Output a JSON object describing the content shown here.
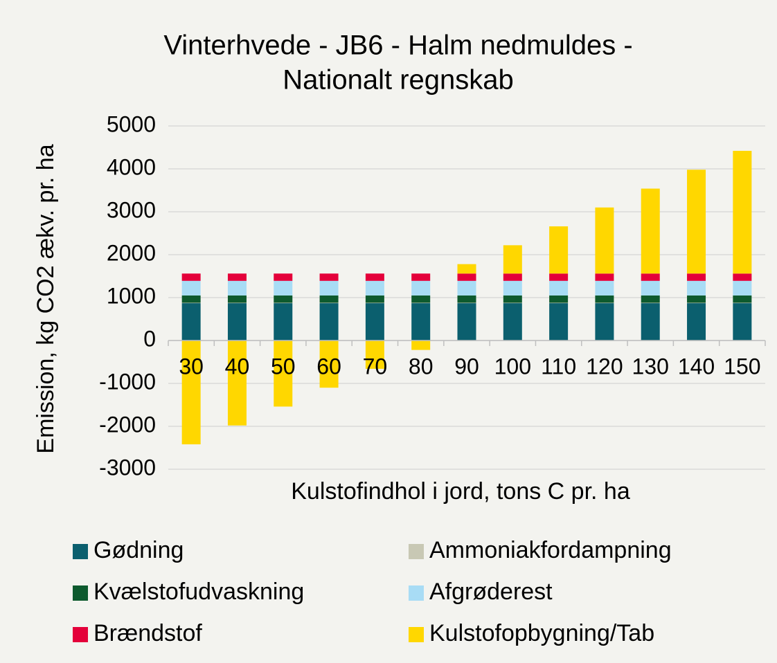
{
  "chart_data": {
    "type": "stacked_bar",
    "title": "Vinterhvede - JB6 - Halm nedmuldes -",
    "subtitle": "Nationalt regnskab",
    "x_label": "Kulstofindhol i jord, tons C pr. ha",
    "y_label": "Emission, kg CO2 ækv. pr. ha",
    "categories": [
      "30",
      "40",
      "50",
      "60",
      "70",
      "80",
      "90",
      "100",
      "110",
      "120",
      "130",
      "140",
      "150"
    ],
    "series": [
      {
        "name": "Gødning",
        "color": "#0b5f6e",
        "values": [
          870,
          870,
          870,
          870,
          870,
          870,
          870,
          870,
          870,
          870,
          870,
          870,
          870
        ]
      },
      {
        "name": "Ammoniakfordampning",
        "color": "#c8c8b4",
        "values": [
          10,
          10,
          10,
          10,
          10,
          10,
          10,
          10,
          10,
          10,
          10,
          10,
          10
        ]
      },
      {
        "name": "Kvælstofudvaskning",
        "color": "#0d5a2e",
        "values": [
          170,
          170,
          170,
          170,
          170,
          170,
          170,
          170,
          170,
          170,
          170,
          170,
          170
        ]
      },
      {
        "name": "Afgrøderest",
        "color": "#a8dcf5",
        "values": [
          340,
          340,
          340,
          340,
          340,
          340,
          340,
          340,
          340,
          340,
          340,
          340,
          340
        ]
      },
      {
        "name": "Brændstof",
        "color": "#e4003a",
        "values": [
          170,
          170,
          170,
          170,
          170,
          170,
          170,
          170,
          170,
          170,
          170,
          170,
          170
        ]
      },
      {
        "name": "Kulstofopbygning/Tab",
        "color": "#ffd700",
        "values": [
          -2420,
          -1980,
          -1540,
          -1100,
          -660,
          -220,
          220,
          660,
          1100,
          1540,
          1980,
          2420,
          2860
        ]
      }
    ],
    "ylim": [
      -3000,
      5000
    ],
    "yticks": [
      -3000,
      -2000,
      -1000,
      0,
      1000,
      2000,
      3000,
      4000,
      5000
    ],
    "grid": true
  }
}
